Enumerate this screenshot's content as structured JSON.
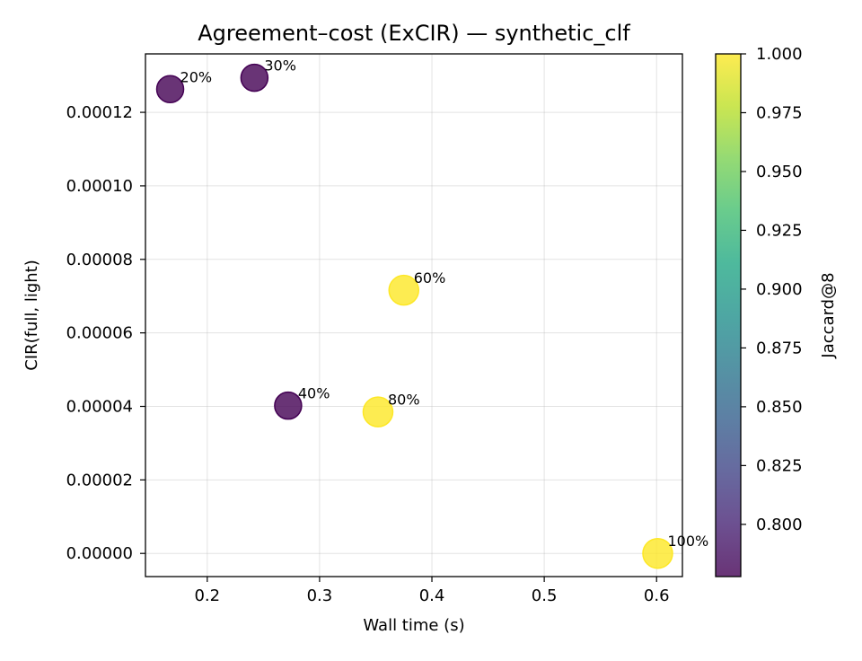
{
  "chart_data": {
    "type": "scatter",
    "title": "Agreement–cost (ExCIR) — synthetic_clf",
    "xlabel": "Wall time (s)",
    "ylabel": "CIR(full, light)",
    "xlim": [
      0.145,
      0.623
    ],
    "ylim": [
      -6.3e-06,
      0.0001359
    ],
    "x_ticks": [
      0.2,
      0.3,
      0.4,
      0.5,
      0.6
    ],
    "x_tick_labels": [
      "0.2",
      "0.3",
      "0.4",
      "0.5",
      "0.6"
    ],
    "y_ticks": [
      0,
      2e-05,
      4e-05,
      6e-05,
      8e-05,
      0.0001,
      0.00012
    ],
    "y_tick_labels": [
      "0.00000",
      "0.00002",
      "0.00004",
      "0.00006",
      "0.00008",
      "0.00010",
      "0.00012"
    ],
    "grid": true,
    "colormap": "viridis",
    "colorbar": {
      "label": "Jaccard@8",
      "min": 0.7778,
      "max": 1.0,
      "ticks": [
        0.8,
        0.825,
        0.85,
        0.875,
        0.9,
        0.925,
        0.95,
        0.975,
        1.0
      ],
      "tick_labels": [
        "0.800",
        "0.825",
        "0.850",
        "0.875",
        "0.900",
        "0.925",
        "0.950",
        "0.975",
        "1.000"
      ]
    },
    "points": [
      {
        "label": "20%",
        "x": 0.167,
        "y": 0.0001263,
        "jaccard": 0.7778
      },
      {
        "label": "30%",
        "x": 0.242,
        "y": 0.0001294,
        "jaccard": 0.7778
      },
      {
        "label": "40%",
        "x": 0.272,
        "y": 4.02e-05,
        "jaccard": 0.7778
      },
      {
        "label": "60%",
        "x": 0.375,
        "y": 7.16e-05,
        "jaccard": 1.0
      },
      {
        "label": "80%",
        "x": 0.352,
        "y": 3.85e-05,
        "jaccard": 1.0
      },
      {
        "label": "100%",
        "x": 0.601,
        "y": 0.0,
        "jaccard": 1.0
      }
    ]
  },
  "colors": {
    "low": "#440154",
    "high": "#fde725",
    "grid": "#b0b0b0",
    "axis": "#000000"
  }
}
